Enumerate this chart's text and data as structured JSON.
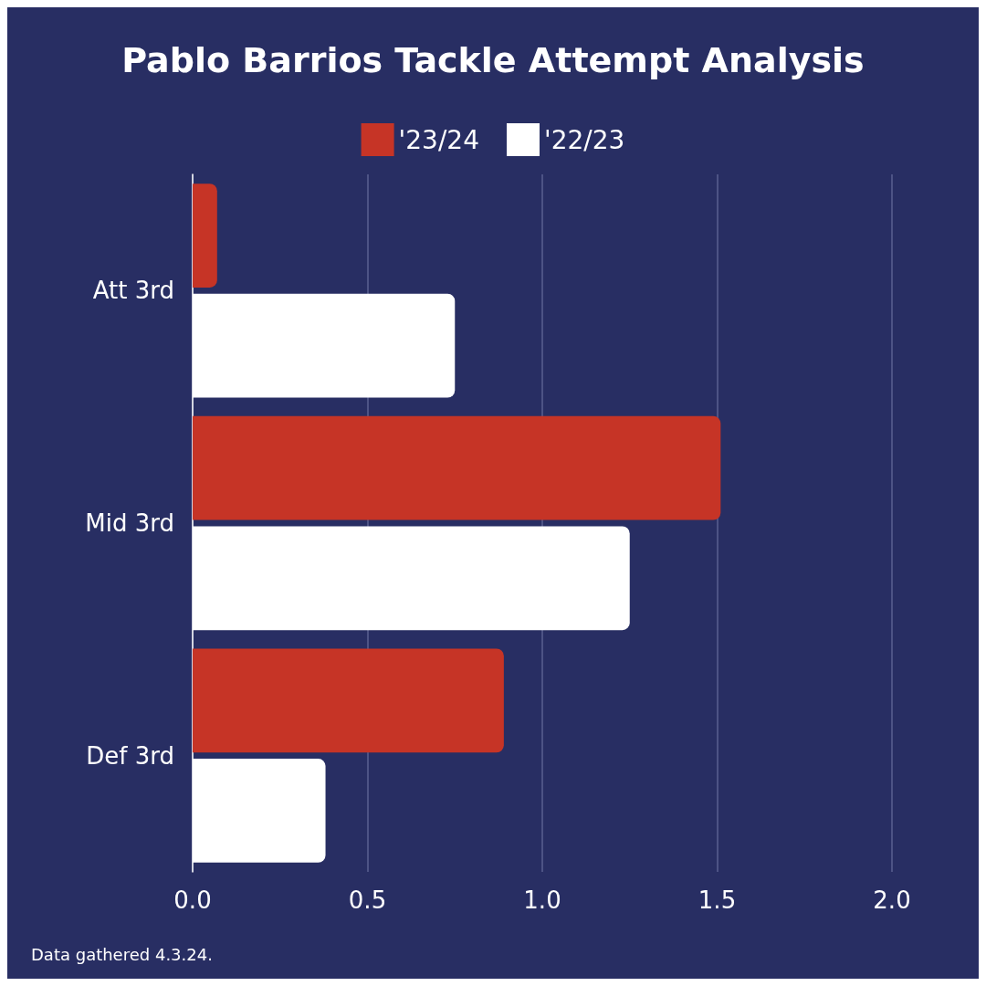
{
  "chart_data": {
    "type": "bar",
    "orientation": "horizontal",
    "title": "Pablo Barrios Tackle Attempt Analysis",
    "categories": [
      "Att 3rd",
      "Mid 3rd",
      "Def 3rd"
    ],
    "series": [
      {
        "name": "'23/24",
        "color": "#c63426",
        "values": [
          0.07,
          1.51,
          0.89
        ]
      },
      {
        "name": "'22/23",
        "color": "#ffffff",
        "values": [
          0.75,
          1.25,
          0.38
        ]
      }
    ],
    "xlim": [
      0,
      2
    ],
    "xticks": [
      {
        "value": 0,
        "label": "0.0"
      },
      {
        "value": 0.5,
        "label": "0.5"
      },
      {
        "value": 1,
        "label": "1.0"
      },
      {
        "value": 1.5,
        "label": "1.5"
      },
      {
        "value": 2,
        "label": "2.0"
      }
    ],
    "grid": "x",
    "legend": "top",
    "annotations": [
      "Data gathered 4.3.24."
    ]
  }
}
